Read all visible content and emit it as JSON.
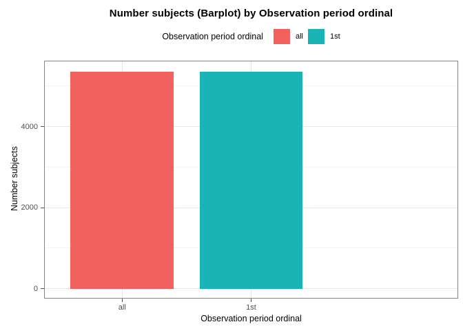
{
  "chart_data": {
    "type": "bar",
    "title": "Number subjects (Barplot) by Observation period ordinal",
    "legend_title": "Observation period ordinal",
    "legend_position": "top",
    "xlabel": "Observation period ordinal",
    "ylabel": "Number subjects",
    "categories": [
      "all",
      "1st"
    ],
    "series": [
      {
        "name": "all",
        "value": 5360,
        "color": "#F2615E"
      },
      {
        "name": "1st",
        "value": 5360,
        "color": "#1AB4B6"
      }
    ],
    "y_ticks": [
      0,
      2000,
      4000
    ],
    "y_minor_ticks": [
      1000,
      3000,
      5000
    ],
    "ylim": [
      -250,
      5630
    ],
    "grid": true,
    "bar_width_fraction": 0.8
  },
  "colors": {
    "panel_border": "#858585",
    "grid_major": "#E6E6E6",
    "grid_minor": "#F4F4F4",
    "tick_mark": "#4D4D4D",
    "tick_label": "#4D4D4D",
    "text": "#000000",
    "background": "#FFFFFF"
  }
}
